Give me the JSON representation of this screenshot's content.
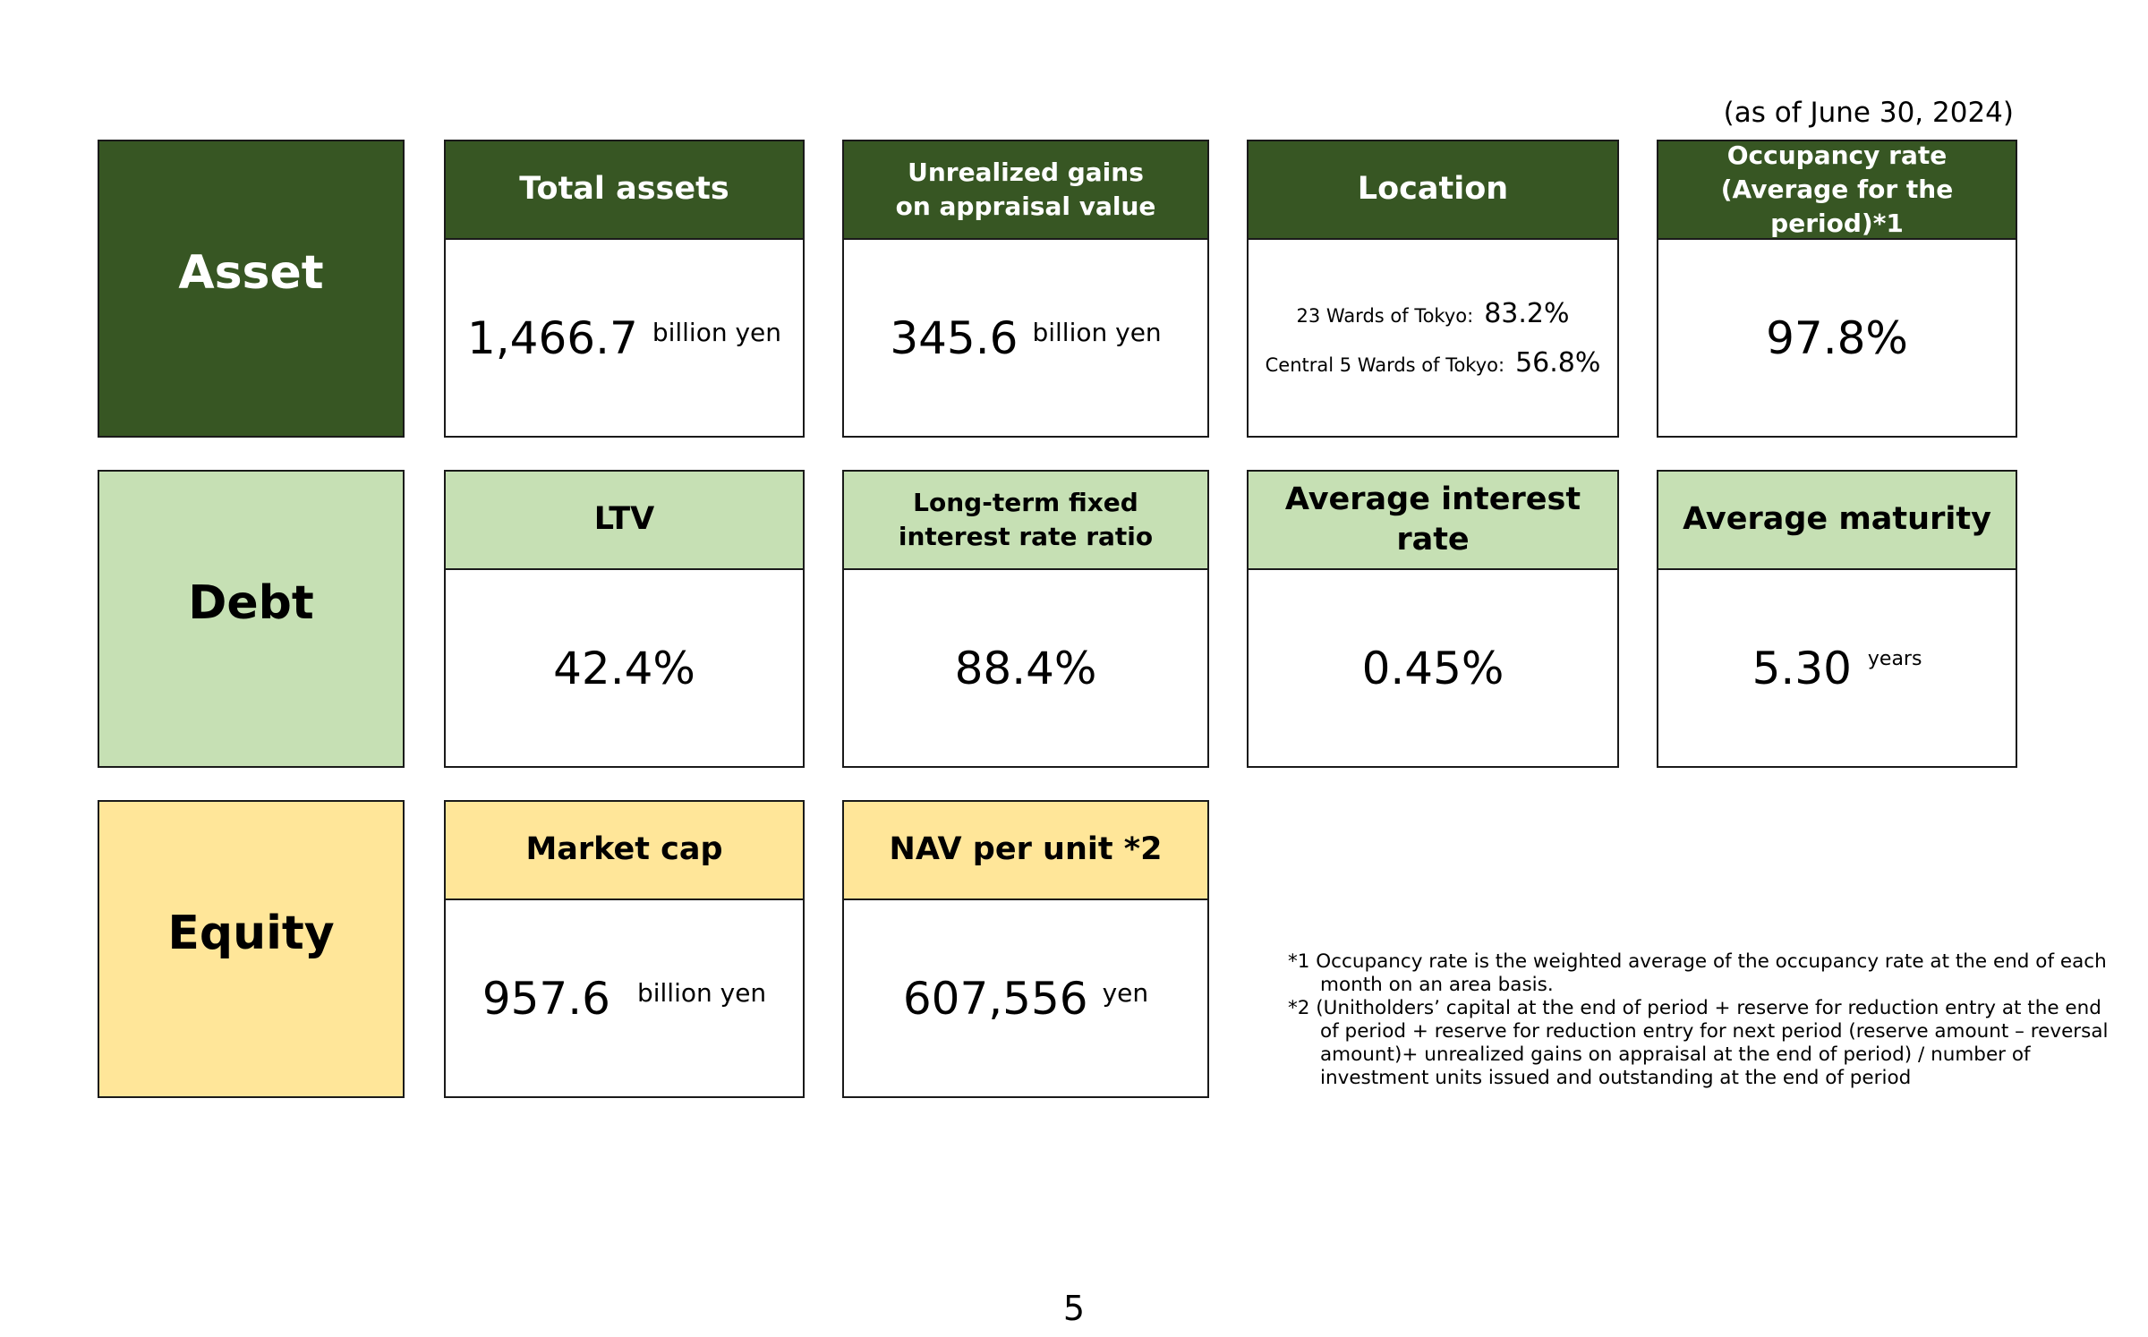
{
  "as_of": "(as of June 30, 2024)",
  "categories": {
    "asset": "Asset",
    "debt": "Debt",
    "equity": "Equity"
  },
  "asset": {
    "total_assets": {
      "header": "Total assets",
      "value": "1,466.7",
      "unit": "billion yen"
    },
    "unrealized_gains": {
      "header_line1": "Unrealized gains",
      "header_line2": "on appraisal value",
      "value": "345.6",
      "unit": "billion yen"
    },
    "location": {
      "header": "Location",
      "items": [
        {
          "label": "23 Wards of Tokyo:",
          "value": "83.2%"
        },
        {
          "label": "Central 5 Wards of Tokyo:",
          "value": "56.8%"
        }
      ]
    },
    "occupancy": {
      "header_line1": "Occupancy rate",
      "header_line2": "(Average for the period)*1",
      "value": "97.8%"
    }
  },
  "debt": {
    "ltv": {
      "header": "LTV",
      "value": "42.4%"
    },
    "fixed_rate": {
      "header_line1": "Long-term fixed",
      "header_line2": "interest rate ratio",
      "value": "88.4%"
    },
    "interest_rate": {
      "header": "Average interest rate",
      "value": "0.45%"
    },
    "maturity": {
      "header": "Average maturity",
      "value": "5.30",
      "unit": "years"
    }
  },
  "equity": {
    "market_cap": {
      "header": "Market cap",
      "value": "957.6",
      "unit": "billion yen"
    },
    "nav": {
      "header": "NAV per unit *2",
      "value": "607,556",
      "unit": "yen"
    }
  },
  "notes": [
    "*1 Occupancy rate is the weighted average of the occupancy rate at the end of each month on an area basis.",
    "*2 (Unitholders’ capital at the end of period + reserve for reduction entry at the end of period + reserve for reduction entry for next period (reserve amount – reversal amount)+ unrealized gains on appraisal at the end of period) / number of investment units issued and outstanding at the end of period"
  ],
  "page_number": "5",
  "colors": {
    "asset": "#375623",
    "debt": "#c6e0b4",
    "equity": "#ffe699"
  }
}
